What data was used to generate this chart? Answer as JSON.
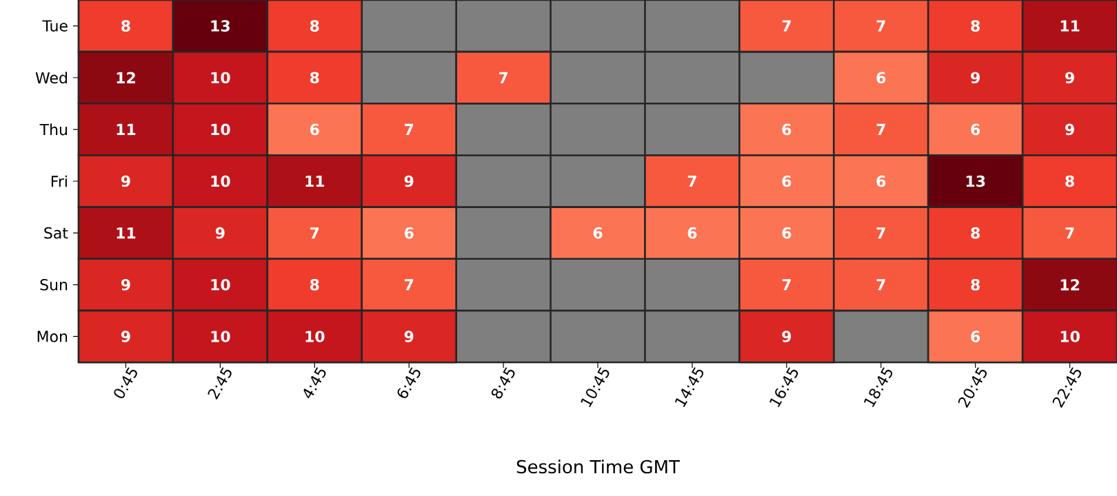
{
  "chart_data": {
    "type": "heatmap",
    "xlabel": "Session Time GMT",
    "categories": [
      "0:45",
      "2:45",
      "4:45",
      "6:45",
      "8:45",
      "10:45",
      "14:45",
      "16:45",
      "18:45",
      "20:45",
      "22:45"
    ],
    "y_categories": [
      "Tue",
      "Wed",
      "Thu",
      "Fri",
      "Sat",
      "Sun",
      "Mon"
    ],
    "cells": [
      [
        8,
        13,
        8,
        null,
        null,
        null,
        null,
        7,
        7,
        8,
        11
      ],
      [
        12,
        10,
        8,
        null,
        7,
        null,
        null,
        null,
        6,
        9,
        9
      ],
      [
        11,
        10,
        6,
        7,
        null,
        null,
        null,
        6,
        7,
        6,
        9
      ],
      [
        9,
        10,
        11,
        9,
        null,
        null,
        7,
        6,
        6,
        13,
        8
      ],
      [
        11,
        9,
        7,
        6,
        null,
        6,
        6,
        6,
        7,
        8,
        7
      ],
      [
        9,
        10,
        8,
        7,
        null,
        null,
        null,
        7,
        7,
        8,
        12
      ],
      [
        9,
        10,
        10,
        9,
        null,
        null,
        null,
        9,
        null,
        6,
        10
      ]
    ],
    "data_labels": true
  }
}
